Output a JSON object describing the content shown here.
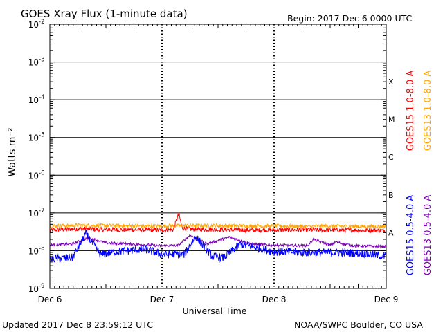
{
  "header": {
    "title": "GOES Xray Flux (1-minute data)",
    "begin": "Begin:  2017 Dec 6 0000 UTC"
  },
  "footer": {
    "updated": "Updated 2017 Dec  8 23:59:12 UTC",
    "credit": "NOAA/SWPC Boulder, CO USA"
  },
  "colors": {
    "goes15_long": "#ff0000",
    "goes13_long": "#ffa500",
    "goes15_short": "#0000ff",
    "goes13_short": "#7b00b4",
    "grid": "#000000"
  },
  "chart_data": {
    "type": "line",
    "title": "GOES Xray Flux (1-minute data)",
    "xlabel": "Universal Time",
    "ylabel": "Watts m⁻²",
    "yscale": "log",
    "ylim": [
      1e-09,
      0.01
    ],
    "xlim_days": [
      6,
      9
    ],
    "x_tick_labels": [
      "Dec 6",
      "Dec 7",
      "Dec 8",
      "Dec 9"
    ],
    "y_tick_labels": [
      {
        "value": 1e-09,
        "base": "10",
        "exp": "-9"
      },
      {
        "value": 1e-08,
        "base": "10",
        "exp": "-8"
      },
      {
        "value": 1e-07,
        "base": "10",
        "exp": "-7"
      },
      {
        "value": 1e-06,
        "base": "10",
        "exp": "-6"
      },
      {
        "value": 1e-05,
        "base": "10",
        "exp": "-5"
      },
      {
        "value": 0.0001,
        "base": "10",
        "exp": "-4"
      },
      {
        "value": 0.001,
        "base": "10",
        "exp": "-3"
      },
      {
        "value": 0.01,
        "base": "10",
        "exp": "-2"
      }
    ],
    "flare_classes": [
      {
        "label": "X",
        "value": 0.0003
      },
      {
        "label": "M",
        "value": 3e-05
      },
      {
        "label": "C",
        "value": 3e-06
      },
      {
        "label": "B",
        "value": 3e-07
      },
      {
        "label": "A",
        "value": 3e-08
      }
    ],
    "grid": true,
    "legend_position": "right, vertical",
    "series": [
      {
        "name": "GOES15 1.0-8.0 A",
        "color": "#ff0000",
        "x": [
          6.0,
          6.25,
          6.5,
          6.75,
          7.0,
          7.1,
          7.15,
          7.18,
          7.25,
          7.5,
          7.75,
          8.0,
          8.25,
          8.5,
          8.75,
          9.0
        ],
        "y": [
          3.5e-08,
          3.8e-08,
          3.6e-08,
          3.6e-08,
          3.5e-08,
          3.6e-08,
          9.5e-08,
          4e-08,
          3.7e-08,
          3.6e-08,
          3.5e-08,
          3.5e-08,
          3.6e-08,
          3.5e-08,
          3.5e-08,
          3.4e-08
        ]
      },
      {
        "name": "GOES13 1.0-8.0 A",
        "color": "#ffa500",
        "x": [
          6.0,
          6.25,
          6.5,
          6.75,
          7.0,
          7.25,
          7.5,
          7.75,
          8.0,
          8.25,
          8.5,
          8.75,
          9.0
        ],
        "y": [
          4.5e-08,
          4.7e-08,
          4.6e-08,
          4.5e-08,
          4.5e-08,
          4.6e-08,
          4.6e-08,
          4.5e-08,
          4.5e-08,
          4.4e-08,
          4.5e-08,
          4.4e-08,
          4.4e-08
        ]
      },
      {
        "name": "GOES13 0.5-4.0 A",
        "color": "#7b00b4",
        "x": [
          6.0,
          6.2,
          6.35,
          6.5,
          6.7,
          6.9,
          7.0,
          7.15,
          7.25,
          7.4,
          7.6,
          7.8,
          8.0,
          8.3,
          8.35,
          8.5,
          8.55,
          8.7,
          8.9,
          9.0
        ],
        "y": [
          1.4e-08,
          1.5e-08,
          2.2e-08,
          1.6e-08,
          1.5e-08,
          1.4e-08,
          1.35e-08,
          1.4e-08,
          2.6e-08,
          1.5e-08,
          2.3e-08,
          1.5e-08,
          1.4e-08,
          1.35e-08,
          2e-08,
          1.4e-08,
          1.7e-08,
          1.35e-08,
          1.3e-08,
          1.3e-08
        ]
      },
      {
        "name": "GOES15 0.5-4.0 A",
        "color": "#0000ff",
        "x": [
          6.0,
          6.2,
          6.32,
          6.45,
          6.6,
          6.85,
          7.0,
          7.2,
          7.3,
          7.45,
          7.55,
          7.7,
          7.9,
          8.0,
          8.3,
          8.6,
          8.8,
          9.0
        ],
        "y": [
          6e-09,
          6.5e-09,
          2.8e-08,
          8e-09,
          9.5e-09,
          1.1e-08,
          8e-09,
          8e-09,
          2.4e-08,
          7e-09,
          6.5e-09,
          1.5e-08,
          1.1e-08,
          9.5e-09,
          9e-09,
          9e-09,
          8.5e-09,
          7e-09
        ]
      }
    ]
  }
}
